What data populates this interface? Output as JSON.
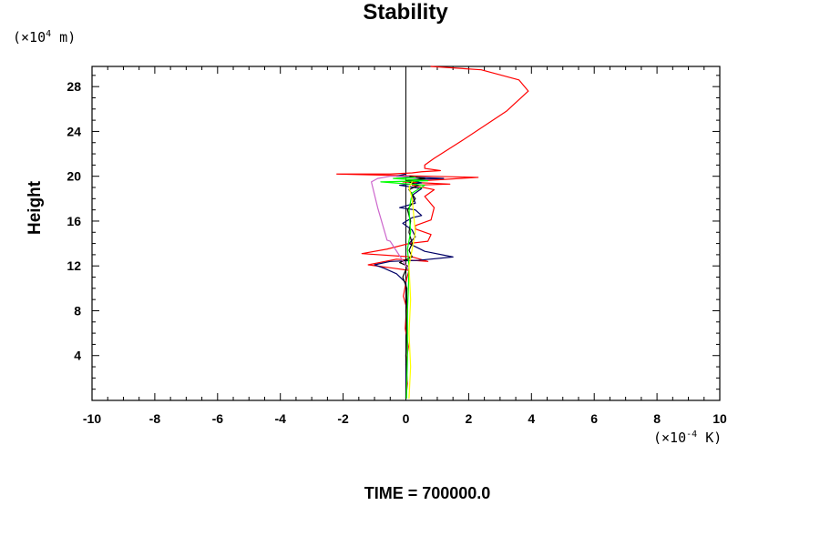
{
  "chart_data": {
    "type": "line",
    "title": "Stability",
    "ylabel": "Height",
    "xlabel": "",
    "x_unit": {
      "prefix": "(×10",
      "exponent": "-4",
      "suffix": " K)"
    },
    "y_unit": {
      "prefix": "(×10",
      "exponent": "4",
      "suffix": " m)"
    },
    "xlim": [
      -10,
      10
    ],
    "ylim": [
      0,
      29.8
    ],
    "x_ticks": [
      -10,
      -8,
      -6,
      -4,
      -2,
      0,
      2,
      4,
      6,
      8,
      10
    ],
    "x_tick_labels": [
      "-10",
      "-8",
      "-6",
      "-4",
      "-2",
      "0",
      "2",
      "4",
      "6",
      "8",
      "10"
    ],
    "y_ticks": [
      4,
      8,
      12,
      16,
      20,
      24,
      28
    ],
    "y_tick_labels": [
      "4",
      "8",
      "12",
      "16",
      "20",
      "24",
      "28"
    ],
    "grid": false,
    "legend": "none",
    "colors": {
      "axes": "#000000",
      "red": "#ff0000",
      "navy": "#000066",
      "green": "#00ff00",
      "violet": "#cc66cc",
      "yellow": "#ffff00",
      "black": "#000000"
    },
    "reference_line": {
      "x": 0,
      "color": "#000000"
    },
    "series": [
      {
        "color": "#ff0000",
        "points": [
          [
            0,
            0.2
          ],
          [
            0.05,
            1.5
          ],
          [
            0,
            3.2
          ],
          [
            0.08,
            4.8
          ],
          [
            -0.02,
            6.4
          ],
          [
            0.02,
            8.3
          ],
          [
            -0.08,
            9.3
          ],
          [
            0.02,
            10.8
          ],
          [
            0.1,
            11.6
          ],
          [
            -0.4,
            11.8
          ],
          [
            -1.2,
            12.1
          ],
          [
            -0.3,
            12.6
          ],
          [
            0.7,
            12.4
          ],
          [
            0.2,
            12.8
          ],
          [
            -1.4,
            13.1
          ],
          [
            -0.6,
            13.5
          ],
          [
            0.1,
            14.0
          ],
          [
            0.7,
            14.2
          ],
          [
            0.8,
            14.8
          ],
          [
            0.3,
            15.3
          ],
          [
            0.3,
            15.6
          ],
          [
            0.8,
            16.1
          ],
          [
            0.9,
            17.2
          ],
          [
            0.6,
            18.2
          ],
          [
            0.9,
            18.8
          ],
          [
            0.2,
            19.2
          ],
          [
            1.4,
            19.3
          ],
          [
            -0.1,
            19.5
          ],
          [
            2.3,
            19.9
          ],
          [
            -0.8,
            20.1
          ],
          [
            -2.2,
            20.2
          ],
          [
            -0.5,
            20.2
          ],
          [
            0.2,
            20.3
          ],
          [
            0.5,
            20.4
          ],
          [
            1.1,
            20.5
          ],
          [
            0.6,
            20.7
          ],
          [
            0.6,
            21.0
          ],
          [
            0.9,
            21.6
          ],
          [
            1.8,
            23.2
          ],
          [
            3.2,
            25.8
          ],
          [
            3.9,
            27.6
          ],
          [
            3.6,
            28.6
          ],
          [
            2.4,
            29.5
          ],
          [
            0.8,
            29.8
          ]
        ]
      },
      {
        "color": "#000066",
        "points": [
          [
            0,
            0.2
          ],
          [
            0,
            4.0
          ],
          [
            0.05,
            8.0
          ],
          [
            0,
            10.5
          ],
          [
            -0.3,
            11.3
          ],
          [
            -0.7,
            11.8
          ],
          [
            -1.0,
            12.1
          ],
          [
            -0.5,
            12.4
          ],
          [
            0.4,
            12.5
          ],
          [
            1.5,
            12.8
          ],
          [
            0.6,
            13.3
          ],
          [
            0.1,
            14.0
          ],
          [
            0.3,
            14.6
          ],
          [
            0.2,
            15.2
          ],
          [
            -0.1,
            15.8
          ],
          [
            0.2,
            16.3
          ],
          [
            0.5,
            16.5
          ],
          [
            0.3,
            17.0
          ],
          [
            -0.2,
            17.2
          ],
          [
            0.3,
            17.6
          ],
          [
            0.2,
            18.3
          ],
          [
            0.5,
            18.9
          ],
          [
            -0.2,
            19.2
          ],
          [
            0.5,
            19.4
          ],
          [
            0.1,
            19.7
          ],
          [
            1.2,
            19.8
          ],
          [
            -0.3,
            20.0
          ],
          [
            0,
            20.2
          ]
        ]
      },
      {
        "color": "#000000",
        "points": [
          [
            0,
            0.2
          ],
          [
            0.03,
            2.0
          ],
          [
            0,
            4.0
          ],
          [
            0.03,
            6.0
          ],
          [
            0,
            8.0
          ],
          [
            0.03,
            10.0
          ],
          [
            -0.1,
            11.0
          ],
          [
            0.05,
            12.0
          ],
          [
            -0.2,
            12.3
          ],
          [
            0.2,
            12.8
          ],
          [
            0.1,
            13.4
          ],
          [
            0.2,
            14.0
          ],
          [
            0.1,
            15.0
          ],
          [
            0.15,
            16.0
          ],
          [
            0.05,
            17.0
          ],
          [
            0.3,
            18.0
          ],
          [
            0.1,
            18.8
          ],
          [
            0.4,
            19.2
          ],
          [
            0,
            19.6
          ],
          [
            0.6,
            19.8
          ],
          [
            0.1,
            20.0
          ]
        ]
      },
      {
        "color": "#cc66cc",
        "points": [
          [
            0.1,
            11.6
          ],
          [
            -0.5,
            14.2
          ],
          [
            -0.6,
            14.3
          ],
          [
            -0.9,
            17.2
          ],
          [
            -1.1,
            19.5
          ],
          [
            -0.9,
            19.8
          ],
          [
            -0.5,
            20.0
          ],
          [
            0.1,
            20.0
          ]
        ]
      },
      {
        "color": "#00ff00",
        "points": [
          [
            0.02,
            0.2
          ],
          [
            0.05,
            4.0
          ],
          [
            0.05,
            8.0
          ],
          [
            0.08,
            10.0
          ],
          [
            0.1,
            12.0
          ],
          [
            0.05,
            13.5
          ],
          [
            0.15,
            15.0
          ],
          [
            0.1,
            17.0
          ],
          [
            0.2,
            18.5
          ],
          [
            0.6,
            19.2
          ],
          [
            -0.8,
            19.5
          ],
          [
            0.7,
            19.6
          ],
          [
            -0.4,
            19.8
          ],
          [
            0.3,
            19.9
          ]
        ]
      },
      {
        "color": "#ffff00",
        "points": [
          [
            0.1,
            0.2
          ],
          [
            0.15,
            3.0
          ],
          [
            0.1,
            6.0
          ],
          [
            0.15,
            9.0
          ],
          [
            0.1,
            12.0
          ],
          [
            0.3,
            15.0
          ],
          [
            0.25,
            16.5
          ],
          [
            0.2,
            18.0
          ],
          [
            0.1,
            19.0
          ],
          [
            0.2,
            19.5
          ]
        ]
      }
    ]
  },
  "footer": {
    "time_label": "TIME = 700000.0"
  }
}
